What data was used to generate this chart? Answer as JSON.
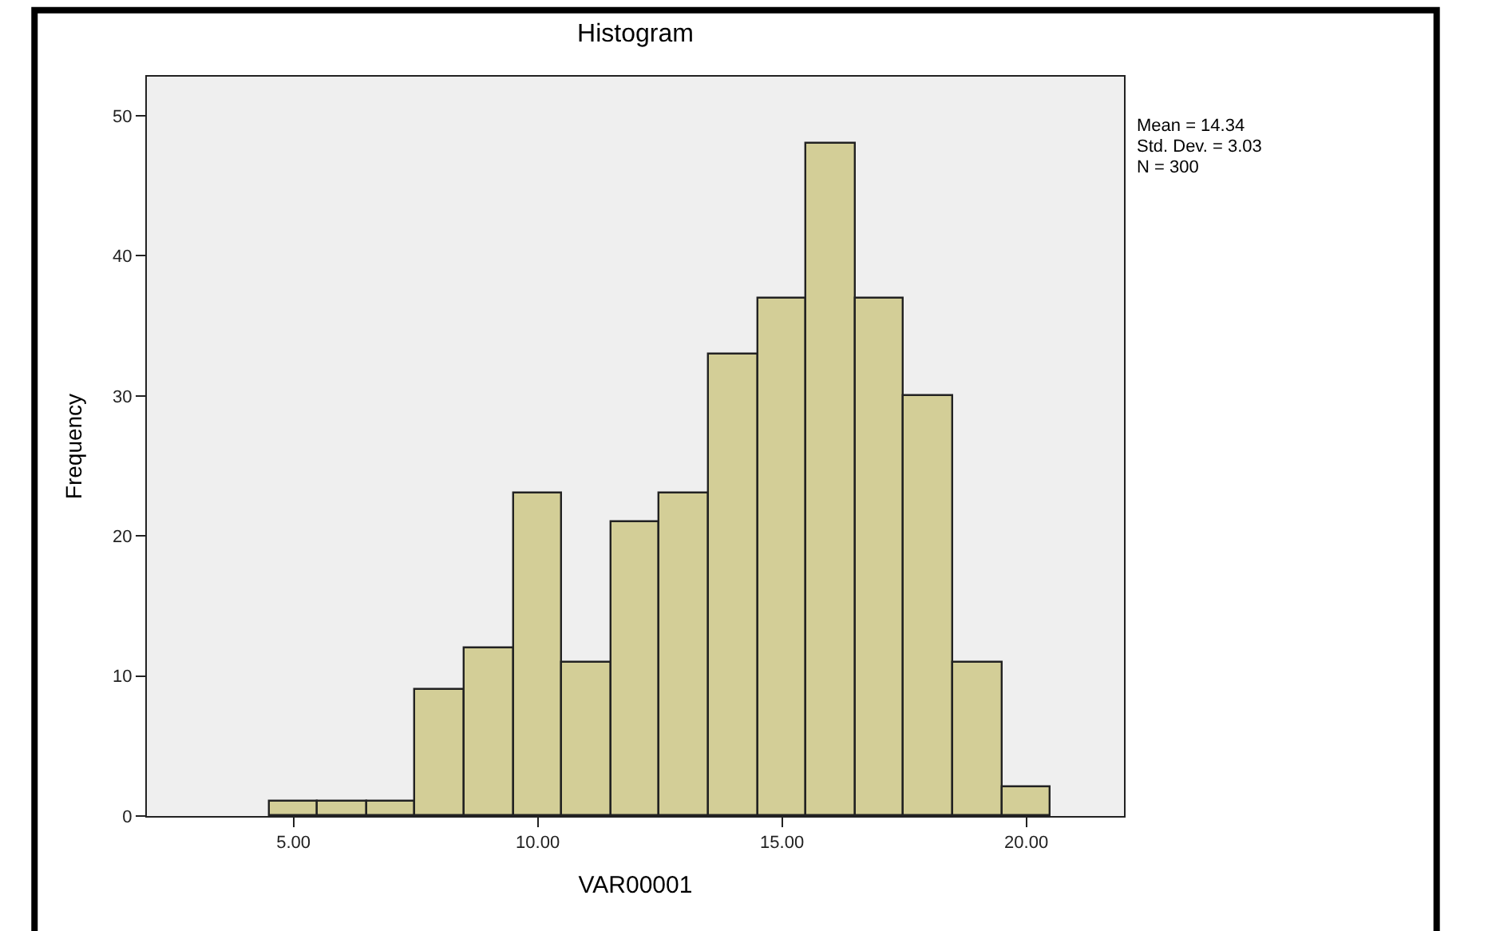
{
  "chart_data": {
    "type": "histogram",
    "title": "Histogram",
    "xlabel": "VAR00001",
    "ylabel": "Frequency",
    "bins": [
      4.5,
      5.5,
      6.5,
      7.5,
      8.5,
      9.5,
      10.5,
      11.5,
      12.5,
      13.5,
      14.5,
      15.5,
      16.5,
      17.5,
      18.5,
      19.5,
      20.5
    ],
    "values": [
      1,
      1,
      1,
      9,
      12,
      23,
      11,
      21,
      23,
      33,
      37,
      48,
      37,
      30,
      11,
      2
    ],
    "color": "#d3ce97",
    "xlim": [
      2,
      22
    ],
    "xticks": [
      {
        "value": 5,
        "label": "5.00"
      },
      {
        "value": 10,
        "label": "10.00"
      },
      {
        "value": 15,
        "label": "15.00"
      },
      {
        "value": 20,
        "label": "20.00"
      }
    ],
    "ylim": [
      0,
      52.8
    ],
    "yticks": [
      0,
      10,
      20,
      30,
      40,
      50
    ],
    "grid": false,
    "legend": false,
    "annotations": [
      "Mean = 14.34",
      "Std. Dev. = 3.03",
      "N = 300"
    ]
  }
}
